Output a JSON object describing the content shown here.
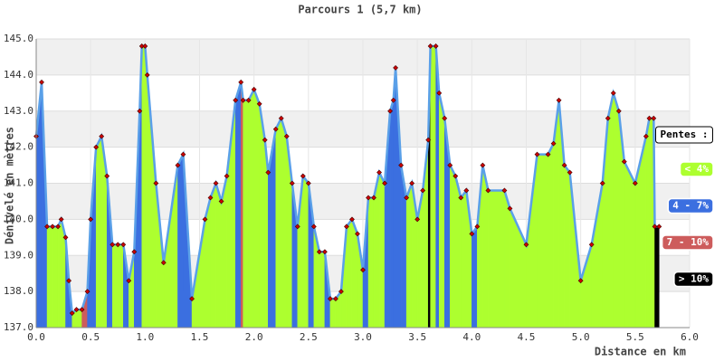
{
  "chart_data": {
    "type": "area",
    "title": "Parcours 1 (5,7 km)",
    "xlabel": "Distance en km",
    "ylabel": "Dénivelé en mètres",
    "xlim": [
      0,
      6
    ],
    "ylim": [
      137,
      145
    ],
    "xticks": [
      {
        "value": 0,
        "label": "0.0"
      },
      {
        "value": 0.5,
        "label": "0.5"
      },
      {
        "value": 1,
        "label": "1.0"
      },
      {
        "value": 1.5,
        "label": "1.5"
      },
      {
        "value": 2,
        "label": "2.0"
      },
      {
        "value": 2.5,
        "label": "2.5"
      },
      {
        "value": 3,
        "label": "3.0"
      },
      {
        "value": 3.5,
        "label": "3.5"
      },
      {
        "value": 4,
        "label": "4.0"
      },
      {
        "value": 4.5,
        "label": "4.5"
      },
      {
        "value": 5,
        "label": "5.0"
      },
      {
        "value": 5.5,
        "label": "5.5"
      },
      {
        "value": 6,
        "label": "6.0"
      }
    ],
    "yticks": [
      {
        "value": 137,
        "label": "137.0"
      },
      {
        "value": 138,
        "label": "138.0"
      },
      {
        "value": 139,
        "label": "139.0"
      },
      {
        "value": 140,
        "label": "140.0"
      },
      {
        "value": 141,
        "label": "141.0"
      },
      {
        "value": 142,
        "label": "142.0"
      },
      {
        "value": 143,
        "label": "143.0"
      },
      {
        "value": 144,
        "label": "144.0"
      },
      {
        "value": 145,
        "label": "145.0"
      }
    ],
    "grid": true,
    "line_color": "#5aa0e8",
    "marker_color": "#cc0000",
    "x": [
      0,
      0.05,
      0.1,
      0.15,
      0.2,
      0.23,
      0.27,
      0.3,
      0.33,
      0.37,
      0.42,
      0.47,
      0.5,
      0.55,
      0.6,
      0.65,
      0.7,
      0.75,
      0.8,
      0.85,
      0.9,
      0.95,
      0.97,
      1.0,
      1.02,
      1.1,
      1.17,
      1.3,
      1.35,
      1.43,
      1.55,
      1.6,
      1.65,
      1.7,
      1.75,
      1.83,
      1.88,
      1.9,
      1.95,
      2.0,
      2.05,
      2.1,
      2.13,
      2.2,
      2.25,
      2.3,
      2.35,
      2.4,
      2.45,
      2.5,
      2.55,
      2.6,
      2.65,
      2.7,
      2.75,
      2.8,
      2.85,
      2.9,
      2.95,
      3.0,
      3.05,
      3.1,
      3.15,
      3.2,
      3.25,
      3.28,
      3.3,
      3.35,
      3.4,
      3.45,
      3.5,
      3.55,
      3.6,
      3.62,
      3.67,
      3.7,
      3.75,
      3.8,
      3.85,
      3.9,
      3.95,
      4.0,
      4.05,
      4.1,
      4.15,
      4.3,
      4.35,
      4.5,
      4.6,
      4.7,
      4.75,
      4.8,
      4.85,
      4.9,
      5.0,
      5.1,
      5.2,
      5.25,
      5.3,
      5.35,
      5.4,
      5.5,
      5.6,
      5.63,
      5.67,
      5.68,
      5.72
    ],
    "values": [
      142.3,
      143.8,
      139.8,
      139.8,
      139.8,
      140.0,
      139.5,
      138.3,
      137.4,
      137.5,
      137.5,
      138.0,
      140.0,
      142.0,
      142.3,
      141.2,
      139.3,
      139.3,
      139.3,
      138.3,
      139.1,
      143.0,
      144.8,
      144.8,
      144.0,
      141.0,
      138.8,
      141.5,
      141.8,
      137.8,
      140.0,
      140.6,
      141.0,
      140.5,
      141.2,
      143.3,
      143.8,
      143.3,
      143.3,
      143.6,
      143.2,
      142.2,
      141.3,
      142.5,
      142.8,
      142.3,
      141.0,
      139.8,
      141.2,
      141.0,
      139.8,
      139.1,
      139.1,
      137.8,
      137.8,
      138.0,
      139.8,
      140.0,
      139.6,
      138.6,
      140.6,
      140.6,
      141.3,
      141.0,
      143.0,
      143.3,
      144.2,
      141.5,
      140.6,
      141.0,
      140.0,
      140.8,
      142.2,
      144.8,
      144.8,
      143.5,
      142.8,
      141.5,
      141.2,
      140.6,
      140.8,
      139.6,
      139.8,
      141.5,
      140.8,
      140.8,
      140.3,
      139.3,
      141.8,
      141.8,
      142.1,
      143.3,
      141.5,
      141.3,
      138.3,
      139.3,
      141.0,
      142.8,
      143.5,
      143.0,
      141.6,
      141.0,
      142.3,
      142.8,
      142.8,
      139.8,
      139.8
    ],
    "classes": [
      0,
      1,
      1,
      0,
      0,
      0,
      0,
      1,
      1,
      0,
      0,
      2,
      1,
      1,
      0,
      0,
      1,
      0,
      0,
      1,
      0,
      1,
      1,
      0,
      0,
      0,
      0,
      0,
      1,
      1,
      0,
      0,
      0,
      0,
      0,
      0,
      1,
      2,
      0,
      0,
      0,
      0,
      0,
      1,
      0,
      0,
      0,
      1,
      0,
      0,
      1,
      0,
      0,
      1,
      0,
      0,
      0,
      0,
      0,
      0,
      1,
      0,
      0,
      0,
      1,
      1,
      1,
      1,
      1,
      0,
      0,
      0,
      0,
      3,
      0,
      1,
      0,
      1,
      0,
      0,
      0,
      0,
      1,
      0,
      0,
      0,
      0,
      0,
      0,
      0,
      0,
      0,
      0,
      0,
      0,
      0,
      0,
      0,
      0,
      0,
      0,
      0,
      0,
      0,
      0,
      0,
      3,
      0
    ],
    "legend": {
      "title": "Pentes :",
      "items": [
        {
          "name": "< 4%",
          "color": "#adff2f"
        },
        {
          "name": "4 - 7%",
          "color": "#3b6fe0"
        },
        {
          "name": "7 - 10%",
          "color": "#cd5c5c"
        },
        {
          "name": "> 10%",
          "color": "#000000"
        }
      ]
    }
  }
}
